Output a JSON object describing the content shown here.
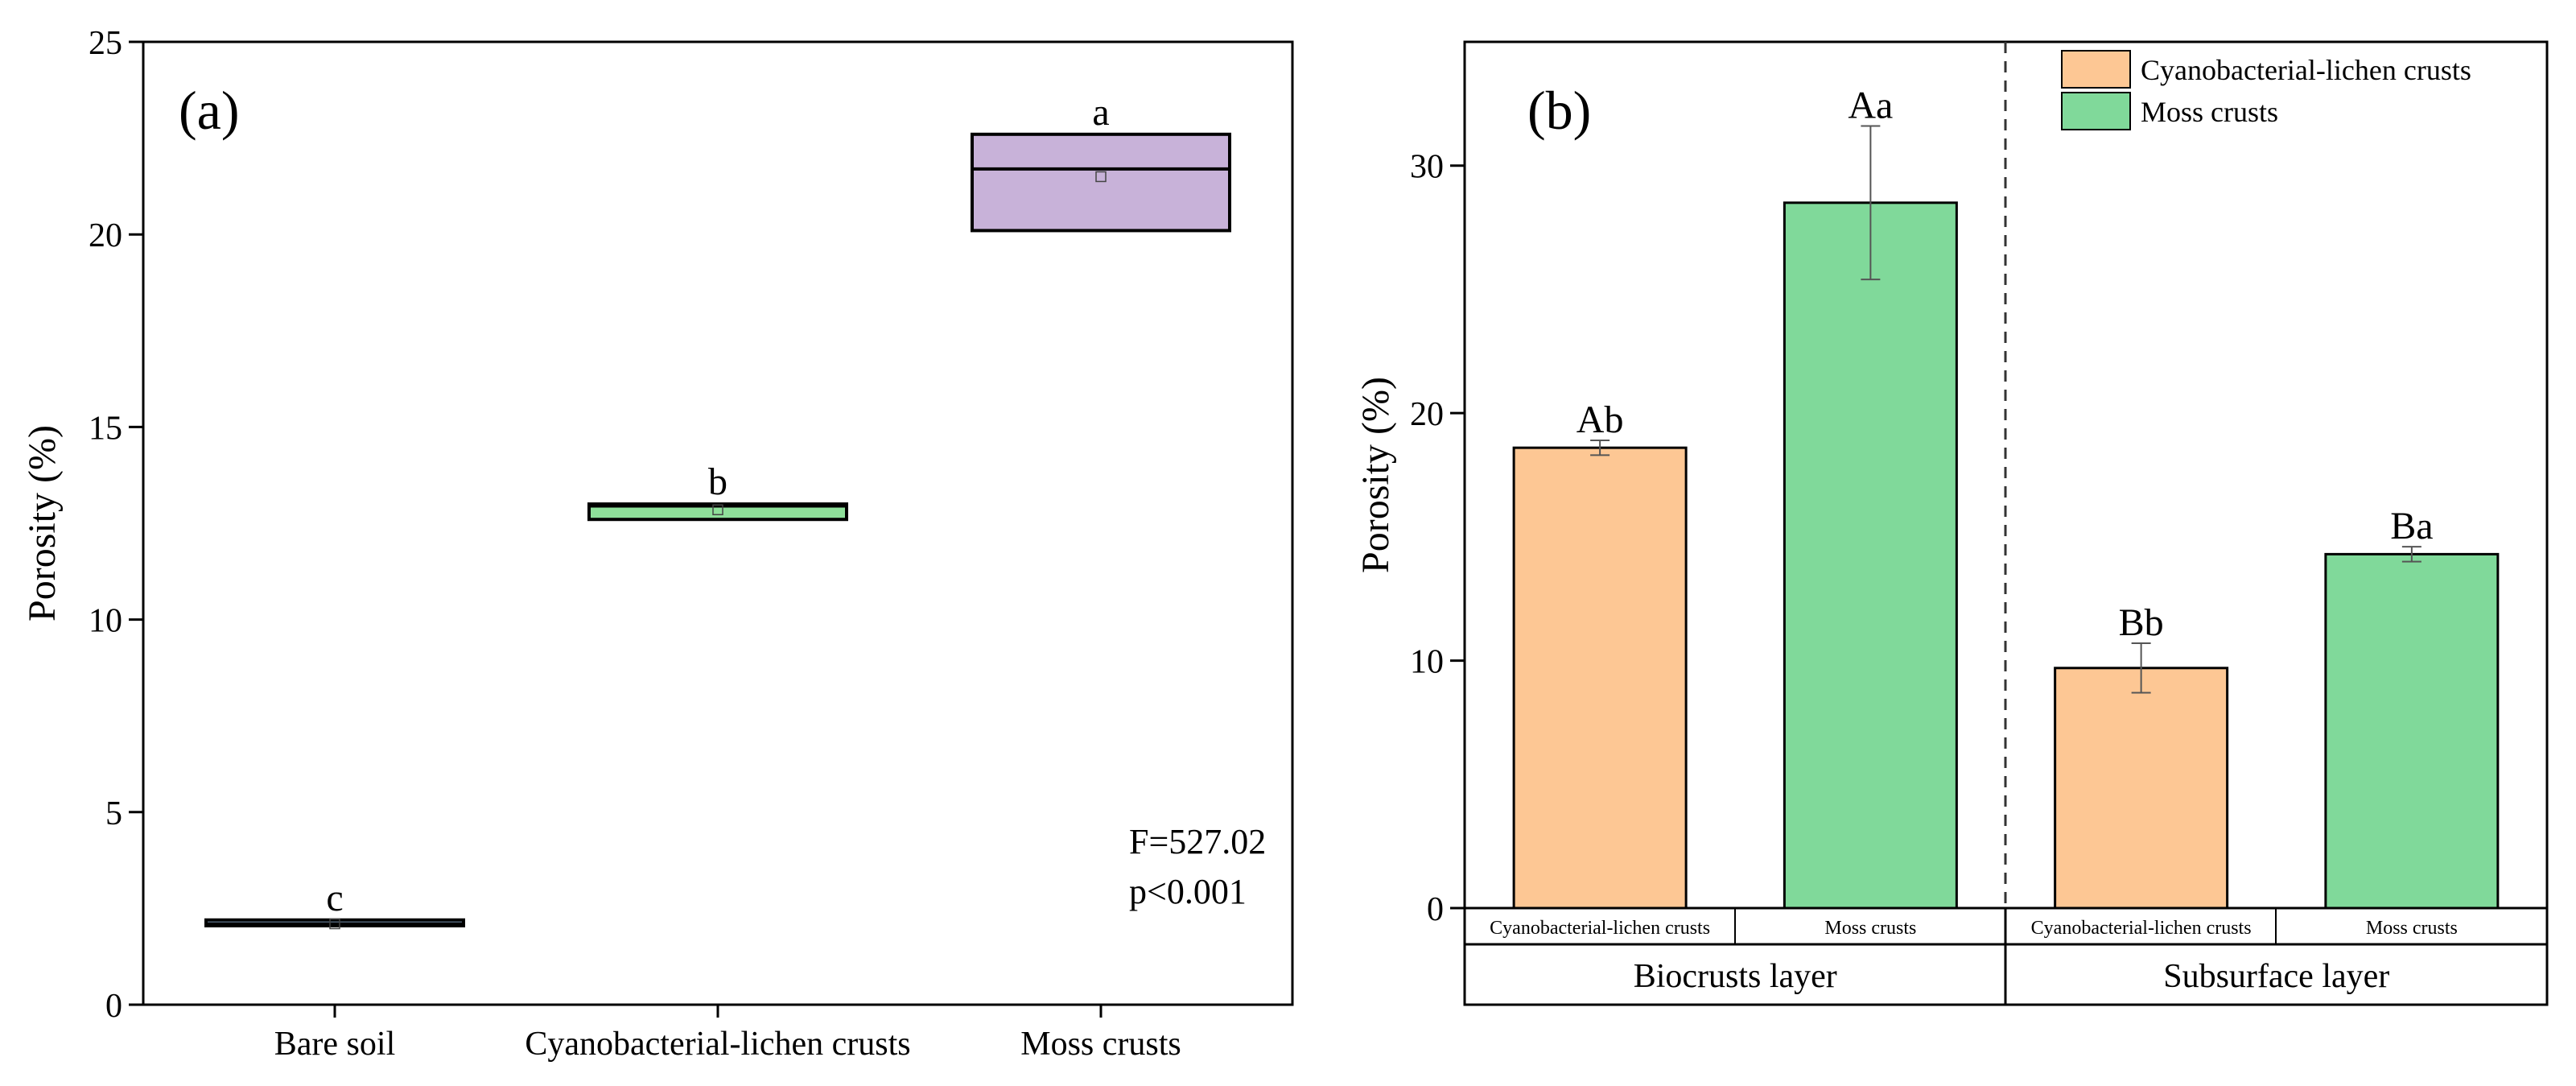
{
  "chart_data": [
    {
      "type": "box",
      "panel_label": "(a)",
      "ylabel": "Porosity (%)",
      "ylim": [
        0,
        25
      ],
      "yticks": [
        0,
        5,
        10,
        15,
        20,
        25
      ],
      "categories": [
        "Bare soil",
        "Cyanobacterial-lichen crusts",
        "Moss crusts"
      ],
      "boxes": [
        {
          "category": "Bare soil",
          "q1": 2.05,
          "median": 2.1,
          "q3": 2.2,
          "mean": 2.1,
          "color": "#9ec0e6",
          "letter": "c"
        },
        {
          "category": "Cyanobacterial-lichen crusts",
          "q1": 12.6,
          "median": 12.95,
          "q3": 13.0,
          "mean": 12.85,
          "color": "#8ee09a",
          "letter": "b"
        },
        {
          "category": "Moss crusts",
          "q1": 20.1,
          "median": 21.7,
          "q3": 22.6,
          "mean": 21.5,
          "color": "#c8b2d9",
          "letter": "a"
        }
      ],
      "stats": {
        "f_text": "F=527.02",
        "p_text": "p<0.001"
      }
    },
    {
      "type": "bar",
      "panel_label": "(b)",
      "ylabel": "Porosity (%)",
      "ylim": [
        0,
        35
      ],
      "yticks": [
        0,
        10,
        20,
        30
      ],
      "groups": [
        "Biocrusts layer",
        "Subsurface layer"
      ],
      "series": [
        {
          "name": "Cyanobacterial-lichen crusts",
          "color": "#fdc794",
          "values": [
            18.6,
            9.7
          ],
          "errors": [
            0.3,
            1.0
          ],
          "letters": [
            "Ab",
            "Bb"
          ]
        },
        {
          "name": "Moss crusts",
          "color": "#80d99a",
          "values": [
            28.5,
            14.3
          ],
          "errors": [
            3.1,
            0.3
          ],
          "letters": [
            "Aa",
            "Ba"
          ]
        }
      ],
      "subcategory_labels": [
        "Cyanobacterial-lichen crusts",
        "Moss crusts",
        "Cyanobacterial-lichen crusts",
        "Moss crusts"
      ],
      "legend": {
        "position": "top-right",
        "entries": [
          "Cyanobacterial-lichen crusts",
          "Moss crusts"
        ]
      }
    }
  ]
}
